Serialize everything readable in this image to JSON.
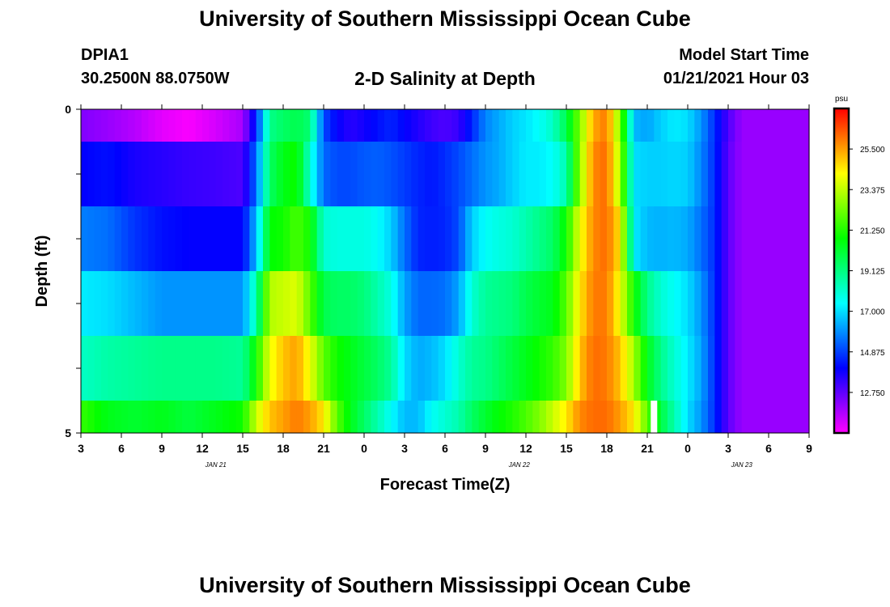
{
  "header": {
    "title_top": "University of Southern Mississippi Ocean Cube",
    "title_bottom": "University of Southern Mississippi Ocean Cube",
    "station_id": "DPIA1",
    "station_coords": "30.2500N 88.0750W",
    "subtitle": "2-D Salinity at Depth",
    "model_start_label": "Model Start Time",
    "model_start_time": "01/21/2021 Hour 03"
  },
  "chart_data": {
    "type": "heatmap",
    "title": "2-D Salinity at Depth",
    "xlabel": "Forecast Time(Z)",
    "ylabel": "Depth (ft)",
    "x_tick_labels": [
      "3",
      "6",
      "9",
      "12",
      "15",
      "18",
      "21",
      "0",
      "3",
      "6",
      "9",
      "12",
      "15",
      "18",
      "21",
      "0",
      "3",
      "6",
      "9"
    ],
    "x_range_hours_from_start": [
      0,
      54
    ],
    "date_labels": [
      {
        "label": "JAN 21",
        "hour": 10
      },
      {
        "label": "JAN 22",
        "hour": 32.5
      },
      {
        "label": "JAN 23",
        "hour": 49
      }
    ],
    "y_tick_labels": [
      "0",
      "5"
    ],
    "ylim": [
      0,
      5
    ],
    "depth_layers": 5,
    "colorbar": {
      "unit": "psu",
      "min": 10.625,
      "max": 27.625,
      "tick_values": [
        12.75,
        14.875,
        17.0,
        19.125,
        21.25,
        23.375,
        25.5
      ],
      "tick_labels": [
        "12.750",
        "14.875",
        "17.000",
        "19.125",
        "21.250",
        "23.375",
        "25.500"
      ]
    },
    "time_hours_from_start": [
      0,
      2,
      4,
      6,
      8,
      10,
      12,
      13,
      14,
      15,
      16,
      17,
      18,
      19,
      20,
      21,
      22,
      23,
      24,
      25,
      26,
      27,
      28,
      29,
      30,
      31,
      32,
      33,
      34,
      35,
      36,
      37,
      38,
      39,
      40,
      41,
      42,
      43,
      44,
      45,
      46,
      47,
      48,
      49,
      50,
      51,
      52,
      53,
      54
    ],
    "salinity_by_layer": [
      [
        12.3,
        12.0,
        11.6,
        11.0,
        10.7,
        11.2,
        11.8,
        14.5,
        19.0,
        19.5,
        19.8,
        19.3,
        15.0,
        14.0,
        13.5,
        13.8,
        14.2,
        14.5,
        14.0,
        13.6,
        13.2,
        13.0,
        13.3,
        14.5,
        15.8,
        16.3,
        16.8,
        17.1,
        17.5,
        18.2,
        19.8,
        22.5,
        25.4,
        26.0,
        22.5,
        16.5,
        16.2,
        16.8,
        17.2,
        17.0,
        16.0,
        14.6,
        13.0,
        12.0,
        12.0,
        12.0,
        12.0,
        12.0,
        12.0
      ],
      [
        14.0,
        14.2,
        13.7,
        13.5,
        13.3,
        13.2,
        13.0,
        15.5,
        19.5,
        20.5,
        21.0,
        18.0,
        15.4,
        15.0,
        15.0,
        15.2,
        15.3,
        15.1,
        14.8,
        14.5,
        14.3,
        14.6,
        15.0,
        15.5,
        16.0,
        16.3,
        16.8,
        17.2,
        17.2,
        17.5,
        18.5,
        22.8,
        25.8,
        26.2,
        23.0,
        17.0,
        16.8,
        16.8,
        16.9,
        16.8,
        15.8,
        14.6,
        12.8,
        12.0,
        12.0,
        12.0,
        12.0,
        12.0,
        12.0
      ],
      [
        15.7,
        15.5,
        14.7,
        14.2,
        14.0,
        14.0,
        14.0,
        16.5,
        20.8,
        21.0,
        21.8,
        21.0,
        18.0,
        17.8,
        17.8,
        17.8,
        17.5,
        16.8,
        15.5,
        14.5,
        14.4,
        14.5,
        15.0,
        16.8,
        17.5,
        17.8,
        18.0,
        18.5,
        19.0,
        19.5,
        21.0,
        24.0,
        25.8,
        26.2,
        24.5,
        17.2,
        16.5,
        16.4,
        16.5,
        16.3,
        15.5,
        14.6,
        12.8,
        12.0,
        12.0,
        12.0,
        12.0,
        12.0,
        12.0
      ],
      [
        17.2,
        17.0,
        16.5,
        16.0,
        16.0,
        16.0,
        16.0,
        18.5,
        23.2,
        23.5,
        23.8,
        22.0,
        19.8,
        19.5,
        19.5,
        19.2,
        18.5,
        17.8,
        16.2,
        15.4,
        15.4,
        15.5,
        16.2,
        18.0,
        18.8,
        19.0,
        19.2,
        19.8,
        20.2,
        20.5,
        22.0,
        24.5,
        26.0,
        26.0,
        24.0,
        21.0,
        19.0,
        18.0,
        17.5,
        17.0,
        16.0,
        14.6,
        12.8,
        12.0,
        12.0,
        12.0,
        12.0,
        12.0,
        12.0
      ],
      [
        18.2,
        18.6,
        18.8,
        19.0,
        19.0,
        19.0,
        18.8,
        21.0,
        24.0,
        25.0,
        25.5,
        24.0,
        22.0,
        21.0,
        20.5,
        20.0,
        19.5,
        18.8,
        17.0,
        16.3,
        16.5,
        17.0,
        18.0,
        18.8,
        19.0,
        19.5,
        20.0,
        20.5,
        21.0,
        21.5,
        22.5,
        25.0,
        26.2,
        26.0,
        25.0,
        23.0,
        20.5,
        19.0,
        18.0,
        17.2,
        16.2,
        14.6,
        12.8,
        12.0,
        12.0,
        12.0,
        12.0,
        12.0,
        12.0
      ],
      [
        21.5,
        20.5,
        20.2,
        20.5,
        20.0,
        20.5,
        21.0,
        23.5,
        25.0,
        25.5,
        26.0,
        25.5,
        24.5,
        22.0,
        20.5,
        19.5,
        18.5,
        17.5,
        16.5,
        16.5,
        17.5,
        18.0,
        18.5,
        19.5,
        20.2,
        20.8,
        21.2,
        21.8,
        22.5,
        23.5,
        24.5,
        25.8,
        26.2,
        26.2,
        25.5,
        24.5,
        22.0,
        20.0,
        18.5,
        17.0,
        16.0,
        14.6,
        12.8,
        12.0,
        12.0,
        12.0,
        12.0,
        12.0,
        12.0
      ]
    ],
    "annotation": {
      "type": "white-bar",
      "hour": 42.5,
      "layer": 5
    }
  }
}
